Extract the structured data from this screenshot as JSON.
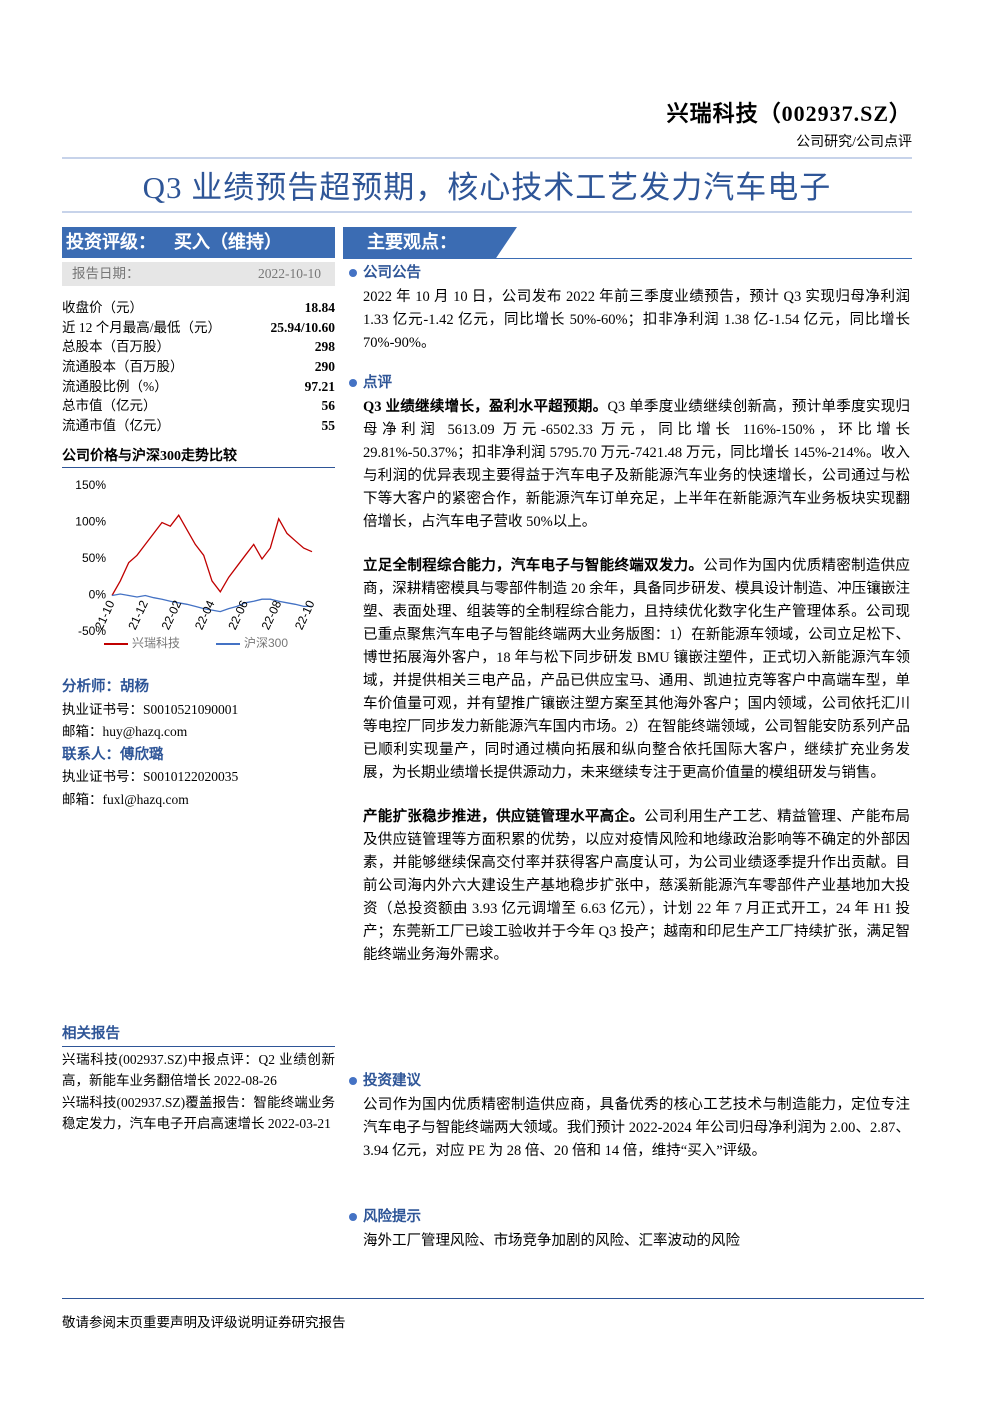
{
  "header": {
    "company": "兴瑞科技（002937.SZ）",
    "category": "公司研究/公司点评"
  },
  "title": "Q3 业绩预告超预期，核心技术工艺发力汽车电子",
  "rating": {
    "label": "投资评级：",
    "value": "买入（维持）"
  },
  "report_date": {
    "label": "报告日期：",
    "value": "2022-10-10"
  },
  "key_data": [
    {
      "label": "收盘价（元）",
      "value": "18.84"
    },
    {
      "label": "近 12 个月最高/最低（元）",
      "value": "25.94/10.60"
    },
    {
      "label": "总股本（百万股）",
      "value": "298"
    },
    {
      "label": "流通股本（百万股）",
      "value": "290"
    },
    {
      "label": "流通股比例（%）",
      "value": "97.21"
    },
    {
      "label": "总市值（亿元）",
      "value": "56"
    },
    {
      "label": "流通市值（亿元）",
      "value": "55"
    }
  ],
  "chart_data": {
    "type": "line",
    "title": "公司价格与沪深300走势比较",
    "categories": [
      "21-10",
      null,
      null,
      null,
      "21-12",
      null,
      null,
      null,
      "22-02",
      null,
      null,
      null,
      "22-04",
      null,
      null,
      null,
      "22-06",
      null,
      null,
      null,
      "22-08",
      null,
      null,
      null,
      "22-10"
    ],
    "series": [
      {
        "name": "兴瑞科技",
        "color": "#c00000",
        "values": [
          0,
          20,
          45,
          55,
          70,
          85,
          100,
          95,
          110,
          90,
          70,
          55,
          20,
          5,
          25,
          40,
          55,
          70,
          50,
          65,
          105,
          85,
          75,
          65,
          60
        ]
      },
      {
        "name": "沪深300",
        "color": "#4472c4",
        "values": [
          0,
          2,
          0,
          -2,
          0,
          -3,
          -5,
          -8,
          -10,
          -12,
          -15,
          -18,
          -20,
          -22,
          -18,
          -15,
          -10,
          -8,
          -5,
          -5,
          -8,
          -10,
          -12,
          -15,
          -15
        ]
      }
    ],
    "ylim": [
      -50,
      150
    ],
    "yticks": [
      {
        "value": -50,
        "label": "-50%"
      },
      {
        "value": 0,
        "label": "0%"
      },
      {
        "value": 50,
        "label": "50%"
      },
      {
        "value": 100,
        "label": "100%"
      },
      {
        "value": 150,
        "label": "150%"
      }
    ],
    "grid": false
  },
  "analysts": [
    {
      "role": "分析师：胡杨",
      "license": "执业证书号：S0010521090001",
      "email": "邮箱：huy@hazq.com"
    },
    {
      "role": "联系人：傅欣璐",
      "license": "执业证书号：S0010122020035",
      "email": "邮箱：fuxl@hazq.com"
    }
  ],
  "related_reports": {
    "title": "相关报告",
    "items": [
      "兴瑞科技(002937.SZ)中报点评：Q2 业绩创新高，新能车业务翻倍增长 2022-08-26",
      "兴瑞科技(002937.SZ)覆盖报告：智能终端业务稳定发力，汽车电子开启高速增长 2022-03-21"
    ]
  },
  "main_points": {
    "title": "主要观点：",
    "sections": [
      {
        "heading": "公司公告",
        "paragraphs": [
          {
            "lead": "",
            "text": "2022 年 10 月 10 日，公司发布 2022 年前三季度业绩预告，预计 Q3 实现归母净利润 1.33 亿元-1.42 亿元，同比增长 50%-60%；扣非净利润 1.38 亿-1.54 亿元，同比增长 70%-90%。"
          }
        ]
      },
      {
        "heading": "点评",
        "paragraphs": [
          {
            "lead": "Q3 业绩继续增长，盈利水平超预期。",
            "text": "Q3 单季度业绩继续创新高，预计单季度实现归母净利润 5613.09 万元-6502.33 万元，同比增长 116%-150%，环比增长 29.81%-50.37%；扣非净利润 5795.70 万元-7421.48 万元，同比增长 145%-214%。收入与利润的优异表现主要得益于汽车电子及新能源汽车业务的快速增长，公司通过与松下等大客户的紧密合作，新能源汽车订单充足，上半年在新能源汽车业务板块实现翻倍增长，占汽车电子营收 50%以上。"
          },
          {
            "lead": "立足全制程综合能力，汽车电子与智能终端双发力。",
            "text": "公司作为国内优质精密制造供应商，深耕精密模具与零部件制造 20 余年，具备同步研发、模具设计制造、冲压镶嵌注塑、表面处理、组装等的全制程综合能力，且持续优化数字化生产管理体系。公司现已重点聚焦汽车电子与智能终端两大业务版图：1）在新能源车领域，公司立足松下、博世拓展海外客户，18 年与松下同步研发 BMU 镶嵌注塑件，正式切入新能源汽车领域，并提供相关三电产品，产品已供应宝马、通用、凯迪拉克等客户中高端车型，单车价值量可观，并有望推广镶嵌注塑方案至其他海外客户；国内领域，公司依托汇川等电控厂同步发力新能源汽车国内市场。2）在智能终端领域，公司智能安防系列产品已顺利实现量产，同时通过横向拓展和纵向整合依托国际大客户，继续扩充业务发展，为长期业绩增长提供源动力，未来继续专注于更高价值量的模组研发与销售。"
          },
          {
            "lead": "产能扩张稳步推进，供应链管理水平高企。",
            "text": "公司利用生产工艺、精益管理、产能布局及供应链管理等方面积累的优势，以应对疫情风险和地缘政治影响等不确定的外部因素，并能够继续保高交付率并获得客户高度认可，为公司业绩逐季提升作出贡献。目前公司海内外六大建设生产基地稳步扩张中，慈溪新能源汽车零部件产业基地加大投资（总投资额由 3.93 亿元调增至 6.63 亿元），计划 22 年 7 月正式开工，24 年 H1 投产；东莞新工厂已竣工验收并于今年 Q3 投产；越南和印尼生产工厂持续扩张，满足智能终端业务海外需求。"
          }
        ]
      },
      {
        "heading": "投资建议",
        "paragraphs": [
          {
            "lead": "",
            "text": "公司作为国内优质精密制造供应商，具备优秀的核心工艺技术与制造能力，定位专注汽车电子与智能终端两大领域。我们预计 2022-2024 年公司归母净利润为 2.00、2.87、3.94 亿元，对应 PE 为 28 倍、20 倍和 14 倍，维持“买入”评级。"
          }
        ]
      },
      {
        "heading": "风险提示",
        "paragraphs": [
          {
            "lead": "",
            "text": "海外工厂管理风险、市场竞争加剧的风险、汇率波动的风险"
          }
        ]
      }
    ]
  },
  "footer": "敬请参阅末页重要声明及评级说明证券研究报告"
}
